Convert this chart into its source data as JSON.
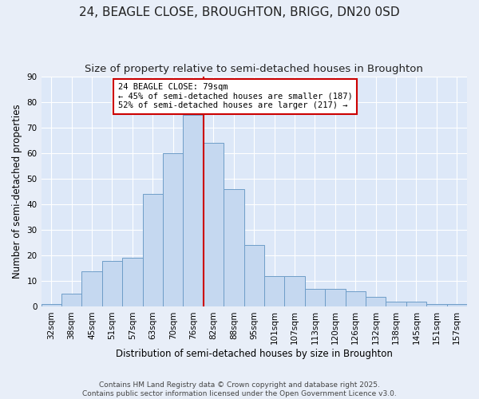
{
  "title": "24, BEAGLE CLOSE, BROUGHTON, BRIGG, DN20 0SD",
  "subtitle": "Size of property relative to semi-detached houses in Broughton",
  "xlabel": "Distribution of semi-detached houses by size in Broughton",
  "ylabel": "Number of semi-detached properties",
  "bin_labels": [
    "32sqm",
    "38sqm",
    "45sqm",
    "51sqm",
    "57sqm",
    "63sqm",
    "70sqm",
    "76sqm",
    "82sqm",
    "88sqm",
    "95sqm",
    "101sqm",
    "107sqm",
    "113sqm",
    "120sqm",
    "126sqm",
    "132sqm",
    "138sqm",
    "145sqm",
    "151sqm",
    "157sqm"
  ],
  "bar_values": [
    1,
    5,
    14,
    18,
    19,
    44,
    60,
    75,
    64,
    46,
    24,
    12,
    12,
    7,
    7,
    6,
    4,
    2,
    2,
    1,
    1
  ],
  "bar_color": "#c5d8f0",
  "bar_edge_color": "#6e9dc8",
  "vline_color": "#cc0000",
  "vline_x_index": 7.5,
  "annotation_lines": [
    "24 BEAGLE CLOSE: 79sqm",
    "← 45% of semi-detached houses are smaller (187)",
    "52% of semi-detached houses are larger (217) →"
  ],
  "annotation_box_color": "#ffffff",
  "annotation_box_edge_color": "#cc0000",
  "ylim": [
    0,
    90
  ],
  "yticks": [
    0,
    10,
    20,
    30,
    40,
    50,
    60,
    70,
    80,
    90
  ],
  "background_color": "#dde8f8",
  "fig_background_color": "#e8eef8",
  "grid_color": "#ffffff",
  "footer_lines": [
    "Contains HM Land Registry data © Crown copyright and database right 2025.",
    "Contains public sector information licensed under the Open Government Licence v3.0."
  ],
  "title_fontsize": 11,
  "subtitle_fontsize": 9.5,
  "axis_label_fontsize": 8.5,
  "tick_fontsize": 7.5,
  "annotation_fontsize": 7.5,
  "footer_fontsize": 6.5
}
